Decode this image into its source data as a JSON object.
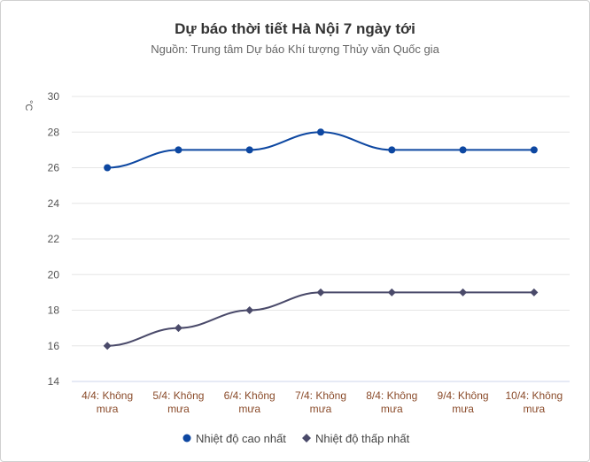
{
  "chart_data": {
    "type": "line",
    "title": "Dự báo thời tiết Hà Nội 7 ngày tới",
    "subtitle": "Nguồn: Trung tâm Dự báo Khí tượng Thủy văn Quốc gia",
    "ylabel": "°C",
    "xlabel": "",
    "ylim": [
      14,
      30
    ],
    "yticks": [
      14,
      16,
      18,
      20,
      22,
      24,
      26,
      28,
      30
    ],
    "grid": true,
    "legend_position": "bottom-center",
    "categories": [
      [
        "4/4: Không",
        "mưa"
      ],
      [
        "5/4: Không",
        "mưa"
      ],
      [
        "6/4: Không",
        "mưa"
      ],
      [
        "7/4: Không",
        "mưa"
      ],
      [
        "8/4: Không",
        "mưa"
      ],
      [
        "9/4: Không",
        "mưa"
      ],
      [
        "10/4: Không",
        "mưa"
      ]
    ],
    "series": [
      {
        "name": "Nhiệt độ cao nhất",
        "values": [
          26,
          27,
          27,
          28,
          27,
          27,
          27
        ],
        "color": "#0d47a1",
        "marker": "circle"
      },
      {
        "name": "Nhiệt độ thấp nhất",
        "values": [
          16,
          17,
          18,
          19,
          19,
          19,
          19
        ],
        "color": "#4a4a6a",
        "marker": "diamond"
      }
    ]
  }
}
